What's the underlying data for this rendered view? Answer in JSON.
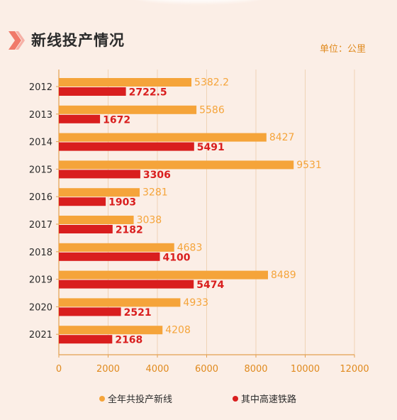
{
  "title": "新线投产情况",
  "unit_label": "单位：公里",
  "colors": {
    "total": "#f5a43a",
    "highspeed": "#d91e1e",
    "background": "#fbeee6",
    "accent": "#f07a6a"
  },
  "chart_data": {
    "type": "bar",
    "orientation": "horizontal",
    "title": "新线投产情况",
    "unit": "单位：公里",
    "categories": [
      "2012",
      "2013",
      "2014",
      "2015",
      "2016",
      "2017",
      "2018",
      "2019",
      "2020",
      "2021"
    ],
    "series": [
      {
        "name": "全年共投产新线",
        "values": [
          5382.2,
          5586,
          8427,
          9531,
          3281,
          3038,
          4683,
          8489,
          4933,
          4208
        ]
      },
      {
        "name": "其中高速铁路",
        "values": [
          2722.5,
          1672,
          5491,
          3306,
          1903,
          2182,
          4100,
          5474,
          2521,
          2168
        ]
      }
    ],
    "value_labels": {
      "total": [
        "5382.2",
        "5586",
        "8427",
        "9531",
        "3281",
        "3038",
        "4683",
        "8489",
        "4933",
        "4208"
      ],
      "highspeed": [
        "2722.5",
        "1672",
        "5491",
        "3306",
        "1903",
        "2182",
        "4100",
        "5474",
        "2521",
        "2168"
      ]
    },
    "xlim": [
      0,
      12000
    ],
    "xticks": [
      "0",
      "2000",
      "4000",
      "6000",
      "8000",
      "10000",
      "12000"
    ],
    "grid": "vertical",
    "legend_position": "bottom"
  }
}
